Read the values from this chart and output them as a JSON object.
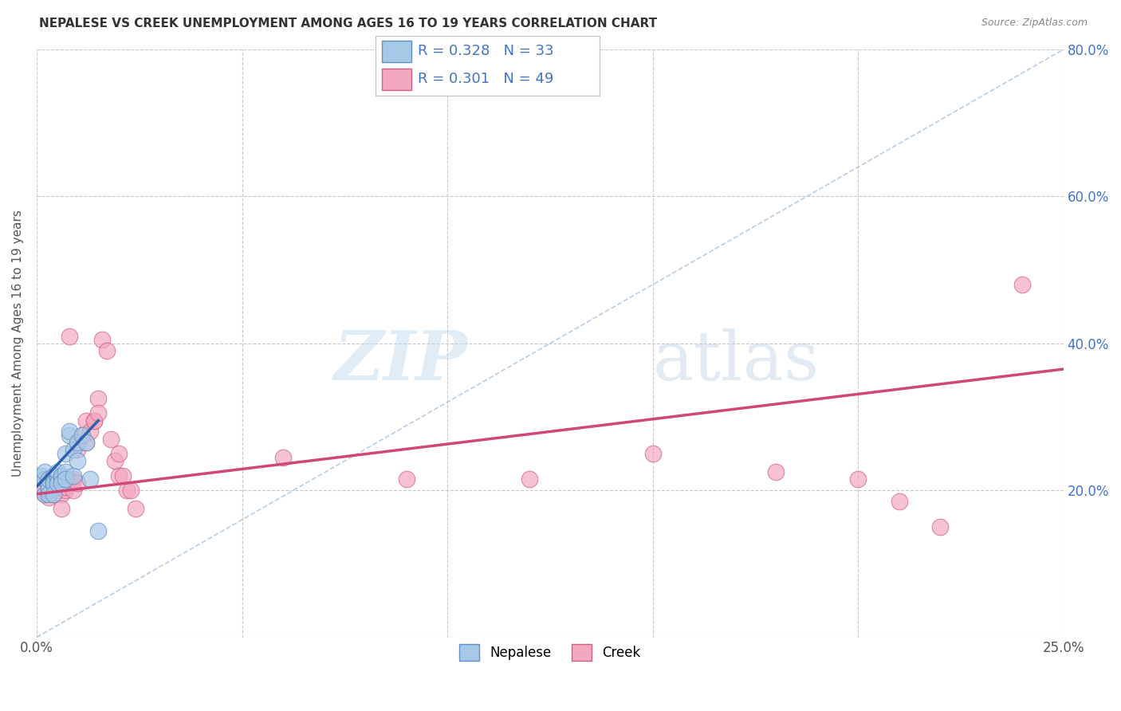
{
  "title": "NEPALESE VS CREEK UNEMPLOYMENT AMONG AGES 16 TO 19 YEARS CORRELATION CHART",
  "source": "Source: ZipAtlas.com",
  "ylabel": "Unemployment Among Ages 16 to 19 years",
  "xlim": [
    0.0,
    0.25
  ],
  "ylim": [
    0.0,
    0.8
  ],
  "x_ticks": [
    0.0,
    0.05,
    0.1,
    0.15,
    0.2,
    0.25
  ],
  "y_ticks": [
    0.0,
    0.2,
    0.4,
    0.6,
    0.8
  ],
  "nepalese_color": "#a8c8e8",
  "creek_color": "#f4a8c0",
  "nepalese_edge": "#6090c0",
  "creek_edge": "#d06080",
  "trend_nepalese_color": "#3060b0",
  "trend_creek_color": "#d04878",
  "diagonal_color": "#b0c8e0",
  "legend_R_nepalese": "0.328",
  "legend_N_nepalese": "33",
  "legend_R_creek": "0.301",
  "legend_N_creek": "49",
  "background_color": "#ffffff",
  "grid_color": "#c8c8c8",
  "nepalese_x": [
    0.001,
    0.002,
    0.002,
    0.002,
    0.003,
    0.003,
    0.003,
    0.003,
    0.004,
    0.004,
    0.004,
    0.004,
    0.004,
    0.005,
    0.005,
    0.005,
    0.005,
    0.006,
    0.006,
    0.006,
    0.007,
    0.007,
    0.007,
    0.008,
    0.008,
    0.009,
    0.009,
    0.01,
    0.01,
    0.011,
    0.012,
    0.013,
    0.015
  ],
  "nepalese_y": [
    0.22,
    0.215,
    0.225,
    0.195,
    0.2,
    0.205,
    0.215,
    0.195,
    0.21,
    0.215,
    0.22,
    0.21,
    0.195,
    0.215,
    0.22,
    0.225,
    0.21,
    0.215,
    0.22,
    0.21,
    0.225,
    0.25,
    0.215,
    0.275,
    0.28,
    0.255,
    0.22,
    0.265,
    0.24,
    0.275,
    0.265,
    0.215,
    0.145
  ],
  "creek_x": [
    0.001,
    0.002,
    0.002,
    0.003,
    0.003,
    0.004,
    0.004,
    0.004,
    0.005,
    0.005,
    0.005,
    0.006,
    0.006,
    0.006,
    0.007,
    0.007,
    0.008,
    0.008,
    0.009,
    0.009,
    0.01,
    0.01,
    0.011,
    0.012,
    0.012,
    0.013,
    0.014,
    0.014,
    0.015,
    0.015,
    0.016,
    0.017,
    0.018,
    0.019,
    0.02,
    0.02,
    0.021,
    0.022,
    0.023,
    0.024,
    0.06,
    0.09,
    0.12,
    0.15,
    0.18,
    0.2,
    0.21,
    0.22,
    0.24
  ],
  "creek_y": [
    0.2,
    0.215,
    0.195,
    0.21,
    0.19,
    0.2,
    0.215,
    0.195,
    0.205,
    0.2,
    0.21,
    0.215,
    0.195,
    0.175,
    0.2,
    0.205,
    0.215,
    0.41,
    0.215,
    0.2,
    0.255,
    0.21,
    0.275,
    0.265,
    0.295,
    0.28,
    0.295,
    0.295,
    0.325,
    0.305,
    0.405,
    0.39,
    0.27,
    0.24,
    0.25,
    0.22,
    0.22,
    0.2,
    0.2,
    0.175,
    0.245,
    0.215,
    0.215,
    0.25,
    0.225,
    0.215,
    0.185,
    0.15,
    0.48
  ],
  "creek_trend_x0": 0.0,
  "creek_trend_y0": 0.195,
  "creek_trend_x1": 0.25,
  "creek_trend_y1": 0.365,
  "nepalese_trend_x0": 0.0,
  "nepalese_trend_y0": 0.205,
  "nepalese_trend_x1": 0.015,
  "nepalese_trend_y1": 0.295
}
